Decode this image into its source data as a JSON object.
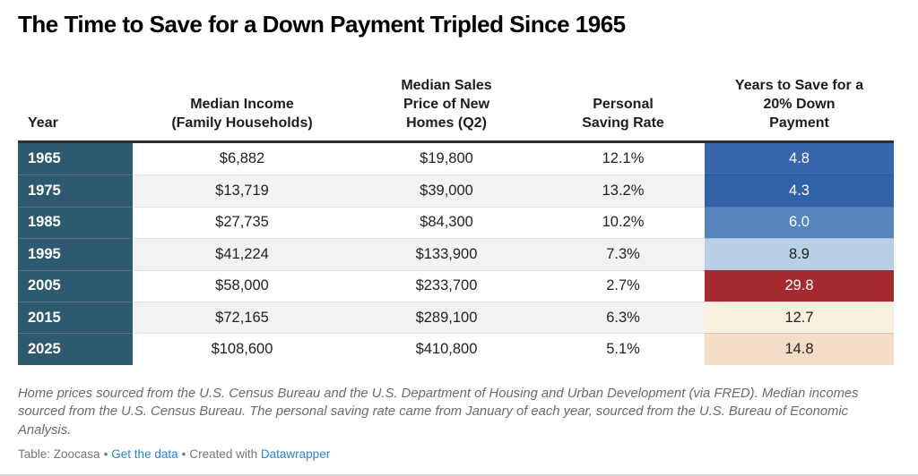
{
  "title": "The Time to Save for a Down Payment Tripled Since 1965",
  "table": {
    "columns": [
      {
        "label": "Year"
      },
      {
        "label": "Median Income\n(Family Households)"
      },
      {
        "label": "Median Sales\nPrice of New\nHomes (Q2)"
      },
      {
        "label": "Personal\nSaving Rate"
      },
      {
        "label": "Years to Save for a\n20% Down\nPayment"
      }
    ],
    "rows": [
      {
        "year": "1965",
        "income": "$6,882",
        "price": "$19,800",
        "saving": "12.1%",
        "years": "4.8",
        "years_bg": "#3766ad",
        "years_fg": "#ffffff"
      },
      {
        "year": "1975",
        "income": "$13,719",
        "price": "$39,000",
        "saving": "13.2%",
        "years": "4.3",
        "years_bg": "#3161a6",
        "years_fg": "#ffffff"
      },
      {
        "year": "1985",
        "income": "$27,735",
        "price": "$84,300",
        "saving": "10.2%",
        "years": "6.0",
        "years_bg": "#5585bb",
        "years_fg": "#ffffff"
      },
      {
        "year": "1995",
        "income": "$41,224",
        "price": "$133,900",
        "saving": "7.3%",
        "years": "8.9",
        "years_bg": "#b8d0e6",
        "years_fg": "#1f1f1f"
      },
      {
        "year": "2005",
        "income": "$58,000",
        "price": "$233,700",
        "saving": "2.7%",
        "years": "29.8",
        "years_bg": "#a62b31",
        "years_fg": "#ffffff"
      },
      {
        "year": "2015",
        "income": "$72,165",
        "price": "$289,100",
        "saving": "6.3%",
        "years": "12.7",
        "years_bg": "#f7efe0",
        "years_fg": "#1f1f1f"
      },
      {
        "year": "2025",
        "income": "$108,600",
        "price": "$410,800",
        "saving": "5.1%",
        "years": "14.8",
        "years_bg": "#f4dcc6",
        "years_fg": "#1f1f1f"
      }
    ]
  },
  "notes": "Home prices sourced from the U.S. Census Bureau and the U.S. Department of Housing and Urban Development (via FRED). Median incomes sourced from the U.S. Census Bureau. The personal saving rate came from January of each year, sourced from the U.S. Bureau of Economic Analysis.",
  "footer": {
    "attribution": "Table: Zoocasa",
    "bullet": "•",
    "get_data_label": "Get the data",
    "created_with": "Created with",
    "datawrapper_label": "Datawrapper"
  },
  "colors": {
    "title_text": "#000000",
    "header_text": "#1d1d1d",
    "body_text": "#222222",
    "year_col_bg": "#2e5a70",
    "year_text": "#ffffff",
    "stripe_bg": "#f2f2f2",
    "top_border": "#2f2f2f",
    "row_border": "#e2e2e2",
    "notes_text": "#6b6b6b",
    "footer_text": "#757575",
    "link_color": "#2a83d4",
    "page_border": "#d9d9d9"
  },
  "chart_data": {
    "type": "table",
    "title": "The Time to Save for a Down Payment Tripled Since 1965",
    "columns": [
      "Year",
      "Median Income (Family Households)",
      "Median Sales Price of New Homes (Q2)",
      "Personal Saving Rate",
      "Years to Save for a 20% Down Payment"
    ],
    "years": [
      1965,
      1975,
      1985,
      1995,
      2005,
      2015,
      2025
    ],
    "median_income_usd": [
      6882,
      13719,
      27735,
      41224,
      58000,
      72165,
      108600
    ],
    "median_new_home_price_usd": [
      19800,
      39000,
      84300,
      133900,
      233700,
      289100,
      410800
    ],
    "personal_saving_rate_pct": [
      12.1,
      13.2,
      10.2,
      7.3,
      2.7,
      6.3,
      5.1
    ],
    "years_to_save_20pct_down": [
      4.8,
      4.3,
      6.0,
      8.9,
      29.8,
      12.7,
      14.8
    ],
    "heatmap_column": "Years to Save for a 20% Down Payment",
    "heatmap_palette": "diverging blue-red (low=dark blue, high=dark red)"
  }
}
